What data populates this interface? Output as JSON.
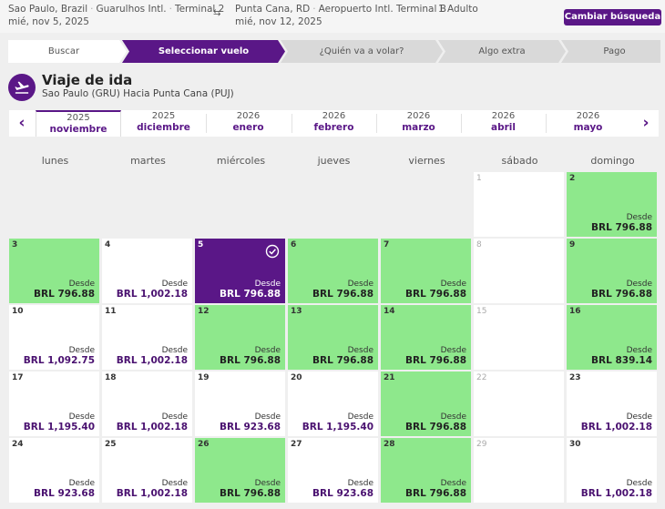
{
  "header": {
    "origin_city": "Sao Paulo, Brazil",
    "origin_airport": "Guarulhos Intl.",
    "origin_terminal": "Terminal 2",
    "departure_date": "mié, nov 5, 2025",
    "dest_city": "Punta Cana, RD",
    "dest_airport": "Aeropuerto Intl. Terminal B",
    "return_date": "mié, nov 12, 2025",
    "passengers": "1 Adulto",
    "change_button": "Cambiar búsqueda",
    "swap_icon": "swap-arrows-icon"
  },
  "steps": [
    "Buscar",
    "Seleccionar vuelo",
    "¿Quién va a volar?",
    "Algo extra",
    "Pago"
  ],
  "active_step": 1,
  "colors": {
    "brand": "#5a1787",
    "available": "#8ee88c",
    "cell": "#ffffff",
    "background": "#efefef"
  },
  "section": {
    "title": "Viaje de ida",
    "subtitle": "Sao Paulo (GRU) Hacia Punta Cana (PUJ)",
    "icon": "airplane-departure-icon"
  },
  "months": [
    {
      "year": "2025",
      "month": "noviembre"
    },
    {
      "year": "2025",
      "month": "diciembre"
    },
    {
      "year": "2026",
      "month": "enero"
    },
    {
      "year": "2026",
      "month": "febrero"
    },
    {
      "year": "2026",
      "month": "marzo"
    },
    {
      "year": "2026",
      "month": "abril"
    },
    {
      "year": "2026",
      "month": "mayo"
    }
  ],
  "active_month": 0,
  "weekdays": [
    "lunes",
    "martes",
    "miércoles",
    "jueves",
    "viernes",
    "sábado",
    "domingo"
  ],
  "price_prefix": "Desde",
  "days": [
    {
      "day": "1",
      "desde": "",
      "price": "",
      "status": "none"
    },
    {
      "day": "2",
      "desde": "Desde",
      "price": "BRL 796.88",
      "status": "low"
    },
    {
      "day": "3",
      "desde": "Desde",
      "price": "BRL 796.88",
      "status": "low"
    },
    {
      "day": "4",
      "desde": "Desde",
      "price": "BRL 1,002.18",
      "status": "normal"
    },
    {
      "day": "5",
      "desde": "Desde",
      "price": "BRL 796.88",
      "status": "selected"
    },
    {
      "day": "6",
      "desde": "Desde",
      "price": "BRL 796.88",
      "status": "low"
    },
    {
      "day": "7",
      "desde": "Desde",
      "price": "BRL 796.88",
      "status": "low"
    },
    {
      "day": "8",
      "desde": "",
      "price": "",
      "status": "none"
    },
    {
      "day": "9",
      "desde": "Desde",
      "price": "BRL 796.88",
      "status": "low"
    },
    {
      "day": "10",
      "desde": "Desde",
      "price": "BRL 1,092.75",
      "status": "normal"
    },
    {
      "day": "11",
      "desde": "Desde",
      "price": "BRL 1,002.18",
      "status": "normal"
    },
    {
      "day": "12",
      "desde": "Desde",
      "price": "BRL 796.88",
      "status": "low"
    },
    {
      "day": "13",
      "desde": "Desde",
      "price": "BRL 796.88",
      "status": "low"
    },
    {
      "day": "14",
      "desde": "Desde",
      "price": "BRL 796.88",
      "status": "low"
    },
    {
      "day": "15",
      "desde": "",
      "price": "",
      "status": "none"
    },
    {
      "day": "16",
      "desde": "Desde",
      "price": "BRL 839.14",
      "status": "low"
    },
    {
      "day": "17",
      "desde": "Desde",
      "price": "BRL 1,195.40",
      "status": "normal"
    },
    {
      "day": "18",
      "desde": "Desde",
      "price": "BRL 1,002.18",
      "status": "normal"
    },
    {
      "day": "19",
      "desde": "Desde",
      "price": "BRL 923.68",
      "status": "normal"
    },
    {
      "day": "20",
      "desde": "Desde",
      "price": "BRL 1,195.40",
      "status": "normal"
    },
    {
      "day": "21",
      "desde": "Desde",
      "price": "BRL 796.88",
      "status": "low"
    },
    {
      "day": "22",
      "desde": "",
      "price": "",
      "status": "none"
    },
    {
      "day": "23",
      "desde": "Desde",
      "price": "BRL 1,002.18",
      "status": "normal"
    },
    {
      "day": "24",
      "desde": "Desde",
      "price": "BRL 923.68",
      "status": "normal"
    },
    {
      "day": "25",
      "desde": "Desde",
      "price": "BRL 1,002.18",
      "status": "normal"
    },
    {
      "day": "26",
      "desde": "Desde",
      "price": "BRL 796.88",
      "status": "low"
    },
    {
      "day": "27",
      "desde": "Desde",
      "price": "BRL 923.68",
      "status": "normal"
    },
    {
      "day": "28",
      "desde": "Desde",
      "price": "BRL 796.88",
      "status": "low"
    },
    {
      "day": "29",
      "desde": "",
      "price": "",
      "status": "none"
    },
    {
      "day": "30",
      "desde": "Desde",
      "price": "BRL 1,002.18",
      "status": "normal"
    }
  ]
}
